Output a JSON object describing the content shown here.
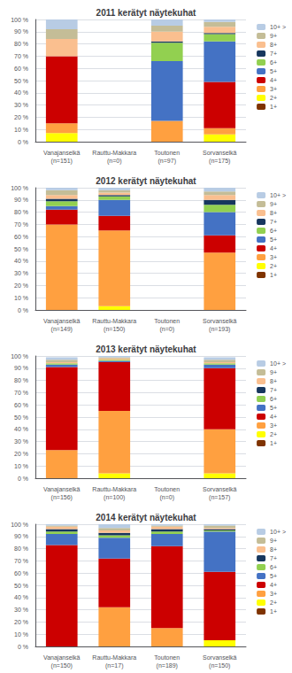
{
  "chart_data": [
    {
      "type": "bar",
      "title": "2011 kerätyt näytekuhat",
      "stacked": true,
      "grid": true,
      "legend": "right",
      "categories": [
        "Vanajanselkä\n(n=151)",
        "Rauttu-Makkara\n(n=0)",
        "Toutonen\n(n=97)",
        "Sorvanselkä\n(n=175)"
      ],
      "series": [
        {
          "name": "1+",
          "color": "#7f3300",
          "values": [
            0,
            0,
            0,
            0
          ]
        },
        {
          "name": "2+",
          "color": "#ffff00",
          "values": [
            7,
            0,
            0,
            6
          ]
        },
        {
          "name": "3+",
          "color": "#ffa040",
          "values": [
            8,
            0,
            17,
            5
          ]
        },
        {
          "name": "4+",
          "color": "#cc0000",
          "values": [
            55,
            0,
            0,
            38
          ]
        },
        {
          "name": "5+",
          "color": "#4472c4",
          "values": [
            0,
            0,
            49,
            33
          ]
        },
        {
          "name": "6+",
          "color": "#92d050",
          "values": [
            0,
            0,
            15,
            6
          ]
        },
        {
          "name": "7+",
          "color": "#17375e",
          "values": [
            0,
            0,
            1,
            1
          ]
        },
        {
          "name": "8+",
          "color": "#fabf8f",
          "values": [
            14,
            0,
            8,
            5
          ]
        },
        {
          "name": "9+",
          "color": "#c4bd97",
          "values": [
            8,
            0,
            5,
            4
          ]
        },
        {
          "name": "10+ >",
          "color": "#b8cce4",
          "values": [
            8,
            0,
            5,
            2
          ]
        }
      ],
      "ylim": [
        0,
        100
      ],
      "yticks": [
        {
          "value": 0,
          "label": "0 %"
        },
        {
          "value": 10,
          "label": "10 %"
        },
        {
          "value": 20,
          "label": "20 %"
        },
        {
          "value": 30,
          "label": "30 %"
        },
        {
          "value": 40,
          "label": "40 %"
        },
        {
          "value": 50,
          "label": "50 %"
        },
        {
          "value": 60,
          "label": "60 %"
        },
        {
          "value": 70,
          "label": "70 %"
        },
        {
          "value": 80,
          "label": "80 %"
        },
        {
          "value": 90,
          "label": "90 %"
        },
        {
          "value": 100,
          "label": "100 %"
        }
      ]
    },
    {
      "type": "bar",
      "title": "2012 kerätyt näytekuhat",
      "stacked": true,
      "grid": true,
      "legend": "right",
      "categories": [
        "Vanajanselkä\n(n=149)",
        "Rauttu-Makkara\n(n=150)",
        "Toutonen\n(n=0)",
        "Sorvanselkä\n(n=193)"
      ],
      "series": [
        {
          "name": "1+",
          "color": "#7f3300",
          "values": [
            0,
            0,
            0,
            0
          ]
        },
        {
          "name": "2+",
          "color": "#ffff00",
          "values": [
            0,
            3,
            0,
            0
          ]
        },
        {
          "name": "3+",
          "color": "#ffa040",
          "values": [
            70,
            62,
            0,
            47
          ]
        },
        {
          "name": "4+",
          "color": "#cc0000",
          "values": [
            12,
            12,
            0,
            14
          ]
        },
        {
          "name": "5+",
          "color": "#4472c4",
          "values": [
            3,
            13,
            0,
            19
          ]
        },
        {
          "name": "6+",
          "color": "#92d050",
          "values": [
            4,
            3,
            0,
            6
          ]
        },
        {
          "name": "7+",
          "color": "#17375e",
          "values": [
            2,
            1,
            0,
            4
          ]
        },
        {
          "name": "8+",
          "color": "#fabf8f",
          "values": [
            3,
            2,
            0,
            4
          ]
        },
        {
          "name": "9+",
          "color": "#c4bd97",
          "values": [
            4,
            2,
            0,
            3
          ]
        },
        {
          "name": "10+ >",
          "color": "#b8cce4",
          "values": [
            2,
            2,
            0,
            3
          ]
        }
      ],
      "ylim": [
        0,
        100
      ],
      "yticks": [
        {
          "value": 0,
          "label": "0 %"
        },
        {
          "value": 10,
          "label": "10 %"
        },
        {
          "value": 20,
          "label": "20 %"
        },
        {
          "value": 30,
          "label": "30 %"
        },
        {
          "value": 40,
          "label": "40 %"
        },
        {
          "value": 50,
          "label": "50 %"
        },
        {
          "value": 60,
          "label": "60 %"
        },
        {
          "value": 70,
          "label": "70 %"
        },
        {
          "value": 80,
          "label": "80 %"
        },
        {
          "value": 90,
          "label": "90 %"
        },
        {
          "value": 100,
          "label": "100 %"
        }
      ]
    },
    {
      "type": "bar",
      "title": "2013 kerätyt näytekuhat",
      "stacked": true,
      "grid": true,
      "legend": "right",
      "categories": [
        "Vanajanselkä\n(n=156)",
        "Rauttu-Makkara\n(n=100)",
        "Toutonen\n(n=0)",
        "Sorvanselkä\n(n=157)"
      ],
      "series": [
        {
          "name": "1+",
          "color": "#7f3300",
          "values": [
            0,
            0,
            0,
            0
          ]
        },
        {
          "name": "2+",
          "color": "#ffff00",
          "values": [
            0,
            4,
            0,
            4
          ]
        },
        {
          "name": "3+",
          "color": "#ffa040",
          "values": [
            23,
            51,
            0,
            36
          ]
        },
        {
          "name": "4+",
          "color": "#cc0000",
          "values": [
            68,
            40,
            0,
            50
          ]
        },
        {
          "name": "5+",
          "color": "#4472c4",
          "values": [
            2,
            1,
            0,
            3
          ]
        },
        {
          "name": "6+",
          "color": "#92d050",
          "values": [
            1,
            1,
            0,
            1
          ]
        },
        {
          "name": "7+",
          "color": "#17375e",
          "values": [
            0,
            0,
            0,
            0
          ]
        },
        {
          "name": "8+",
          "color": "#fabf8f",
          "values": [
            1,
            1,
            0,
            1
          ]
        },
        {
          "name": "9+",
          "color": "#c4bd97",
          "values": [
            2,
            1,
            0,
            2
          ]
        },
        {
          "name": "10+ >",
          "color": "#b8cce4",
          "values": [
            2,
            1,
            0,
            2
          ]
        }
      ],
      "ylim": [
        0,
        100
      ],
      "yticks": [
        {
          "value": 0,
          "label": "0 %"
        },
        {
          "value": 10,
          "label": "10 %"
        },
        {
          "value": 20,
          "label": "20 %"
        },
        {
          "value": 30,
          "label": "30 %"
        },
        {
          "value": 40,
          "label": "40 %"
        },
        {
          "value": 50,
          "label": "50 %"
        },
        {
          "value": 60,
          "label": "60 %"
        },
        {
          "value": 70,
          "label": "70 %"
        },
        {
          "value": 80,
          "label": "80 %"
        },
        {
          "value": 90,
          "label": "90 %"
        },
        {
          "value": 100,
          "label": "100 %"
        }
      ]
    },
    {
      "type": "bar",
      "title": "2014 kerätyt näytekuhat",
      "stacked": true,
      "grid": true,
      "legend": "right",
      "categories": [
        "Vanajanselkä\n(n=150)",
        "Rauttu-Makkara\n(n=17)",
        "Toutonen\n(n=189)",
        "Sorvanselkä\n(n=150)"
      ],
      "series": [
        {
          "name": "1+",
          "color": "#7f3300",
          "values": [
            0,
            0,
            0,
            0
          ]
        },
        {
          "name": "2+",
          "color": "#ffff00",
          "values": [
            0,
            0,
            0,
            5
          ]
        },
        {
          "name": "3+",
          "color": "#ffa040",
          "values": [
            0,
            32,
            15,
            0
          ]
        },
        {
          "name": "4+",
          "color": "#cc0000",
          "values": [
            83,
            40,
            67,
            56
          ]
        },
        {
          "name": "5+",
          "color": "#4472c4",
          "values": [
            9,
            17,
            10,
            33
          ]
        },
        {
          "name": "6+",
          "color": "#92d050",
          "values": [
            2,
            2,
            2,
            1
          ]
        },
        {
          "name": "7+",
          "color": "#17375e",
          "values": [
            2,
            2,
            2,
            1
          ]
        },
        {
          "name": "8+",
          "color": "#fabf8f",
          "values": [
            2,
            2,
            2,
            1
          ]
        },
        {
          "name": "9+",
          "color": "#c4bd97",
          "values": [
            1,
            2,
            1,
            2
          ]
        },
        {
          "name": "10+ >",
          "color": "#b8cce4",
          "values": [
            1,
            3,
            1,
            1
          ]
        }
      ],
      "ylim": [
        0,
        100
      ],
      "yticks": [
        {
          "value": 0,
          "label": "0 %"
        },
        {
          "value": 10,
          "label": "10 %"
        },
        {
          "value": 20,
          "label": "20 %"
        },
        {
          "value": 30,
          "label": "30 %"
        },
        {
          "value": 40,
          "label": "40 %"
        },
        {
          "value": 50,
          "label": "50 %"
        },
        {
          "value": 60,
          "label": "60 %"
        },
        {
          "value": 70,
          "label": "70 %"
        },
        {
          "value": 80,
          "label": "80 %"
        },
        {
          "value": 90,
          "label": "90 %"
        },
        {
          "value": 100,
          "label": "100 %"
        }
      ]
    }
  ]
}
